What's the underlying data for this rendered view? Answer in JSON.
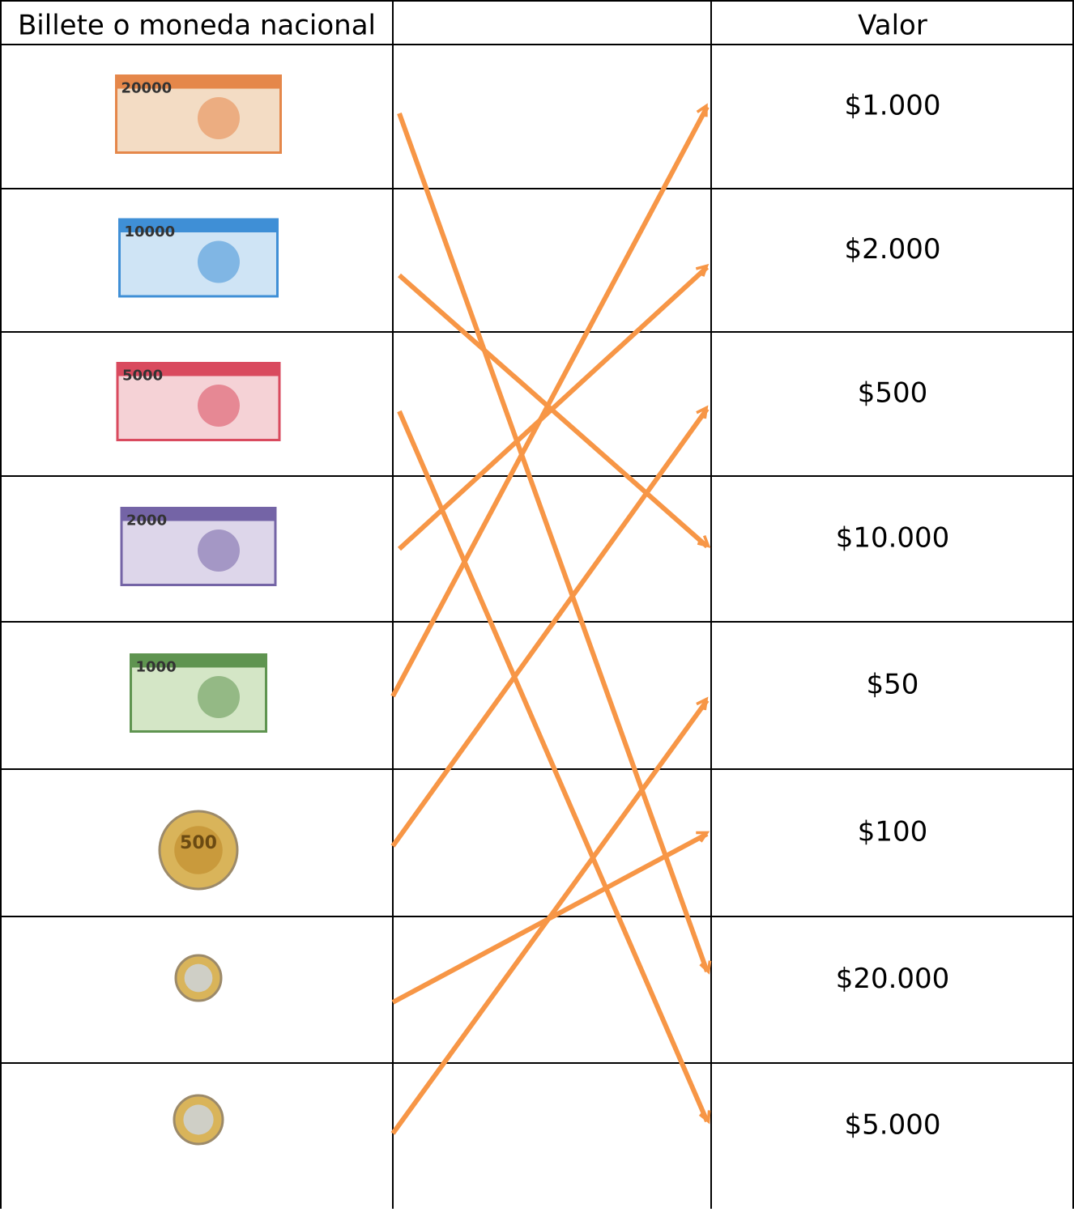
{
  "table": {
    "headers": [
      "Billete o moneda nacional",
      "Valor"
    ],
    "bills": [
      "20000",
      "10000",
      "5000",
      "2000",
      "1000"
    ],
    "coin_label": "500",
    "values": [
      "$1.000",
      "$2.000",
      "$500",
      "$10.000",
      "$50",
      "$100",
      "$20.000",
      "$5.000"
    ]
  }
}
